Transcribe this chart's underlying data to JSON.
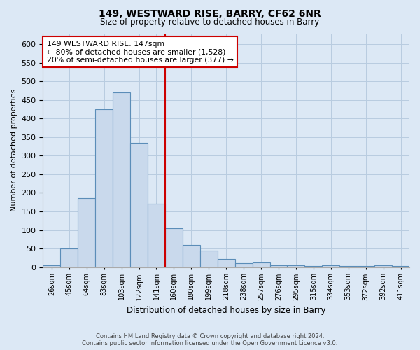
{
  "title": "149, WESTWARD RISE, BARRY, CF62 6NR",
  "subtitle": "Size of property relative to detached houses in Barry",
  "xlabel": "Distribution of detached houses by size in Barry",
  "ylabel": "Number of detached properties",
  "bar_labels": [
    "26sqm",
    "45sqm",
    "64sqm",
    "83sqm",
    "103sqm",
    "122sqm",
    "141sqm",
    "160sqm",
    "180sqm",
    "199sqm",
    "218sqm",
    "238sqm",
    "257sqm",
    "276sqm",
    "295sqm",
    "315sqm",
    "334sqm",
    "353sqm",
    "372sqm",
    "392sqm",
    "411sqm"
  ],
  "bar_values": [
    5,
    50,
    185,
    425,
    470,
    335,
    170,
    105,
    60,
    45,
    22,
    11,
    12,
    5,
    5,
    2,
    4,
    2,
    2,
    4,
    3
  ],
  "bar_color": "#c9d9ec",
  "bar_edge_color": "#5b8db8",
  "grid_color": "#b8cce0",
  "background_color": "#dce8f5",
  "red_line_x": 6.5,
  "red_line_color": "#cc0000",
  "annotation_line1": "149 WESTWARD RISE: 147sqm",
  "annotation_line2": "← 80% of detached houses are smaller (1,528)",
  "annotation_line3": "20% of semi-detached houses are larger (377) →",
  "annotation_box_color": "#ffffff",
  "annotation_box_edge_color": "#cc0000",
  "footer_line1": "Contains HM Land Registry data © Crown copyright and database right 2024.",
  "footer_line2": "Contains public sector information licensed under the Open Government Licence v3.0.",
  "ylim": [
    0,
    630
  ],
  "yticks": [
    0,
    50,
    100,
    150,
    200,
    250,
    300,
    350,
    400,
    450,
    500,
    550,
    600
  ]
}
